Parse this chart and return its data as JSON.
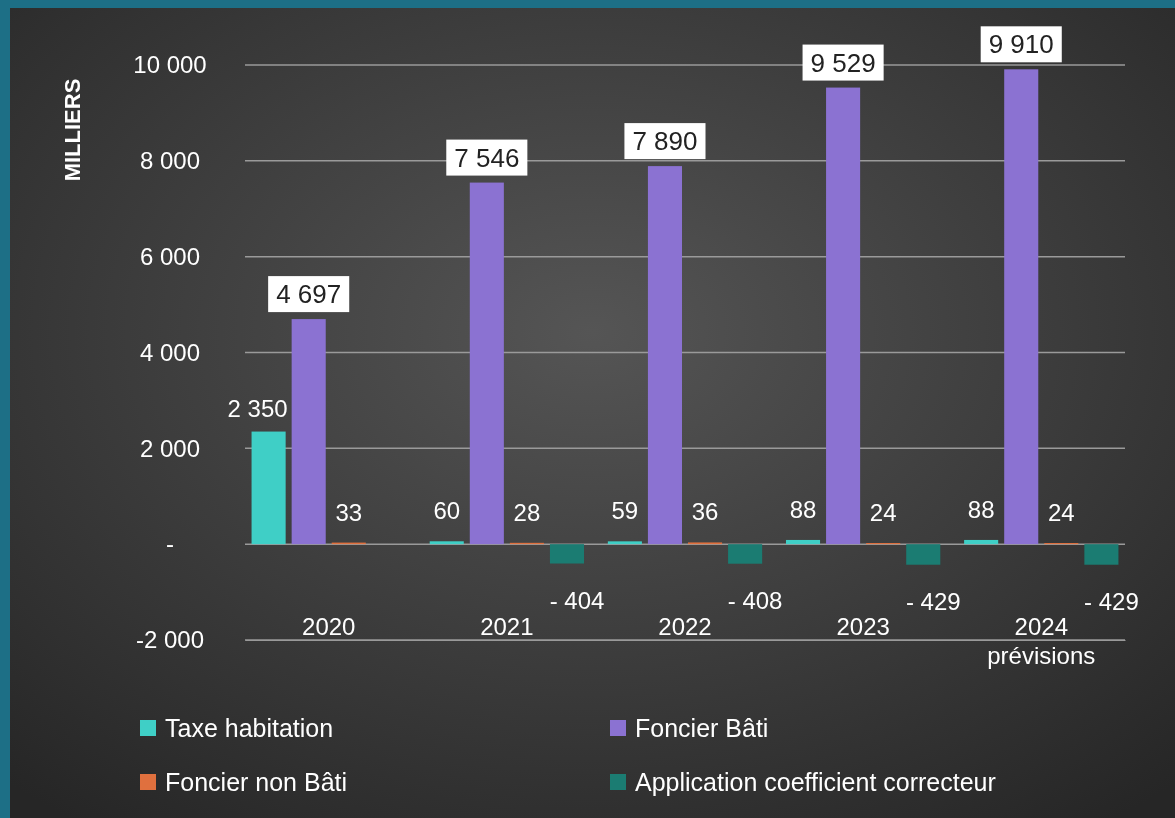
{
  "chart_data": {
    "type": "bar",
    "ylabel": "MILLIERS",
    "categories": [
      "2020",
      "2021",
      "2022",
      "2023",
      "2024\nprévisions"
    ],
    "series": [
      {
        "name": "Taxe habitation",
        "color": "#3fcfc6",
        "values": [
          2350,
          60,
          59,
          88,
          88
        ],
        "value_labels": [
          "2 350",
          "60",
          "59",
          "88",
          "88"
        ]
      },
      {
        "name": "Foncier Bâti",
        "color": "#8b72d2",
        "values": [
          4697,
          7546,
          7890,
          9529,
          9910
        ],
        "value_labels": [
          "4 697",
          "7 546",
          "7 890",
          "9 529",
          "9 910"
        ]
      },
      {
        "name": "Foncier non Bâti",
        "color": "#e0703e",
        "values": [
          33,
          28,
          36,
          24,
          24
        ],
        "value_labels": [
          "33",
          "28",
          "36",
          "24",
          "24"
        ]
      },
      {
        "name": "Application coefficient correcteur",
        "color": "#1b7c72",
        "values": [
          null,
          -404,
          -408,
          -429,
          -429
        ],
        "value_labels": [
          null,
          "- 404",
          "- 408",
          "- 429",
          "- 429"
        ]
      }
    ],
    "ylim": [
      -2000,
      10000
    ],
    "yticks": [
      {
        "value": -2000,
        "label": "-2 000"
      },
      {
        "value": 0,
        "label": "-"
      },
      {
        "value": 2000,
        "label": "2 000"
      },
      {
        "value": 4000,
        "label": "4 000"
      },
      {
        "value": 6000,
        "label": "6 000"
      },
      {
        "value": 8000,
        "label": "8 000"
      },
      {
        "value": 10000,
        "label": "10 000"
      }
    ],
    "grid": "y",
    "legend": "bottom"
  }
}
